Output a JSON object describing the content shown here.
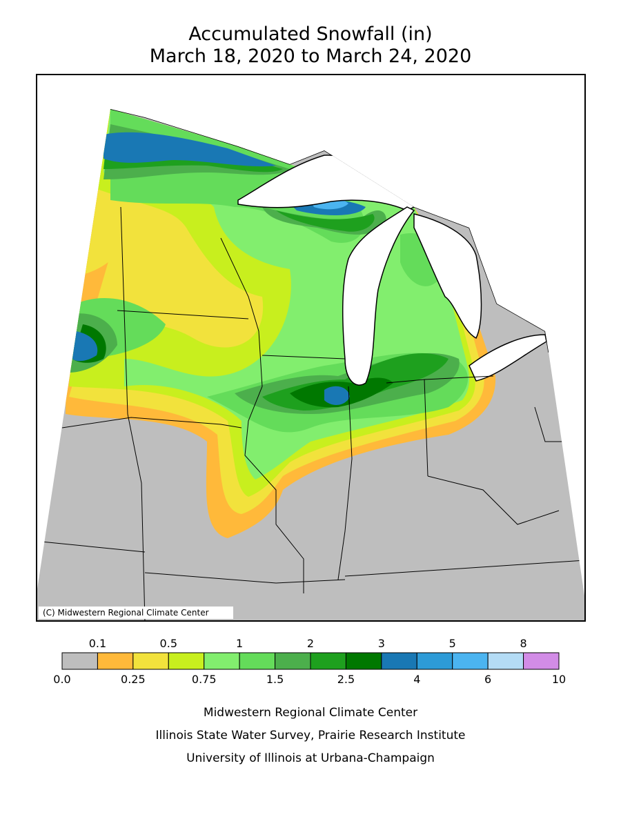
{
  "header": {
    "title": "Accumulated Snowfall (in)",
    "subtitle": "March 18, 2020 to March 24, 2020"
  },
  "map": {
    "credit": "(C) Midwestern Regional Climate Center"
  },
  "legend": {
    "colors": [
      "#bebebe",
      "#ffb93a",
      "#f2e23c",
      "#c8ef1e",
      "#82ee6e",
      "#64dc5a",
      "#4caf4c",
      "#1ea01e",
      "#007800",
      "#1978b4",
      "#2d9bd7",
      "#4bb4f0",
      "#b4dcf5",
      "#d28ce6"
    ],
    "boundaries": [
      "0.0",
      "0.1",
      "0.25",
      "0.5",
      "0.75",
      "1",
      "1.5",
      "2",
      "2.5",
      "3",
      "4",
      "5",
      "6",
      "8",
      "10"
    ]
  },
  "footer": {
    "lines": [
      "Midwestern Regional Climate Center",
      "Illinois State Water Survey, Prairie Research Institute",
      "University of Illinois at Urbana-Champaign"
    ]
  }
}
